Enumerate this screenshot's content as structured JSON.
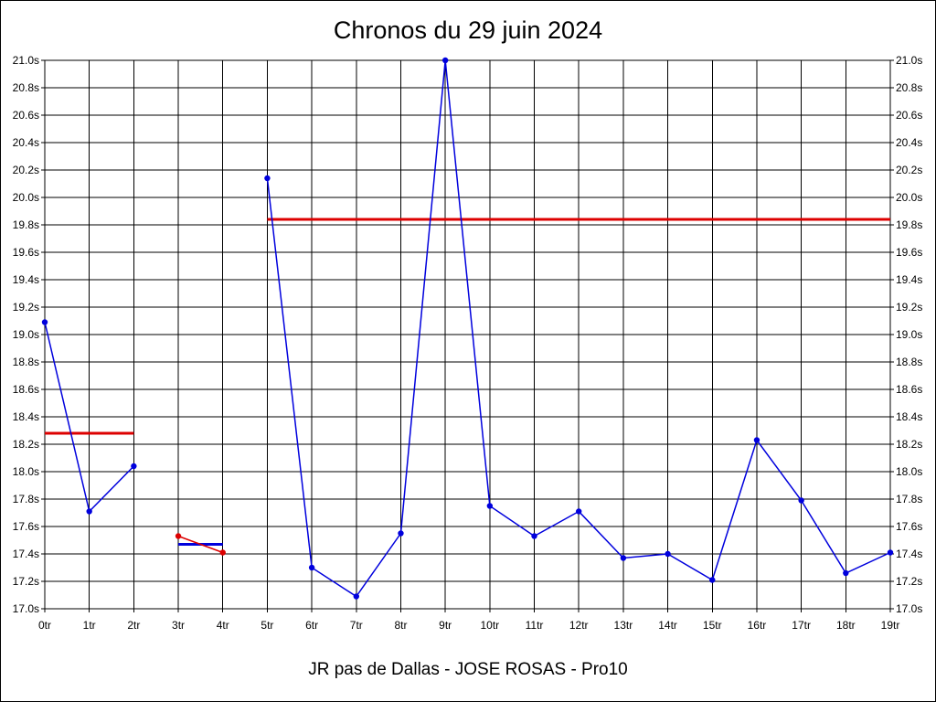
{
  "chart_data": {
    "type": "line",
    "title": "Chronos du 29 juin 2024",
    "subtitle": "JR pas de Dallas - JOSE ROSAS - Pro10",
    "x_categories": [
      "0tr",
      "1tr",
      "2tr",
      "3tr",
      "4tr",
      "5tr",
      "6tr",
      "7tr",
      "8tr",
      "9tr",
      "10tr",
      "11tr",
      "12tr",
      "13tr",
      "14tr",
      "15tr",
      "16tr",
      "17tr",
      "18tr",
      "19tr"
    ],
    "y_ticks": [
      "17.0s",
      "17.2s",
      "17.4s",
      "17.6s",
      "17.8s",
      "18.0s",
      "18.2s",
      "18.4s",
      "18.6s",
      "18.8s",
      "19.0s",
      "19.2s",
      "19.4s",
      "19.6s",
      "19.8s",
      "20.0s",
      "20.2s",
      "20.4s",
      "20.6s",
      "20.8s",
      "21.0s"
    ],
    "ylim": [
      17.0,
      21.0
    ],
    "grid": true,
    "series": [
      {
        "color": "#0000dd",
        "points": [
          [
            0,
            19.09
          ],
          [
            1,
            17.71
          ],
          [
            2,
            18.04
          ]
        ]
      },
      {
        "color": "#dd0000",
        "points": [
          [
            3,
            17.53
          ],
          [
            4,
            17.41
          ]
        ]
      },
      {
        "color": "#0000dd",
        "points": [
          [
            5,
            20.14
          ],
          [
            6,
            17.3
          ],
          [
            7,
            17.09
          ],
          [
            8,
            17.55
          ],
          [
            9,
            21.0
          ],
          [
            10,
            17.75
          ],
          [
            11,
            17.53
          ],
          [
            12,
            17.71
          ],
          [
            13,
            17.37
          ],
          [
            14,
            17.4
          ],
          [
            15,
            17.21
          ],
          [
            16,
            18.23
          ],
          [
            17,
            17.79
          ],
          [
            18,
            17.26
          ],
          [
            19,
            17.41
          ]
        ]
      }
    ],
    "reference_lines": [
      {
        "color": "#dd0000",
        "x_start": 0,
        "x_end": 2,
        "y": 18.28
      },
      {
        "color": "#0000dd",
        "x_start": 3,
        "x_end": 4,
        "y": 17.47
      },
      {
        "color": "#dd0000",
        "x_start": 5,
        "x_end": 19,
        "y": 19.84
      }
    ]
  }
}
